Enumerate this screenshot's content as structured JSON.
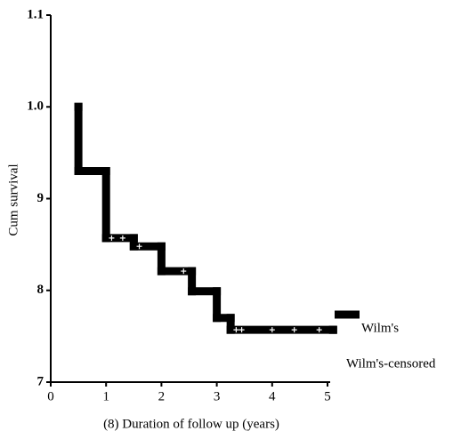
{
  "chart_data": {
    "type": "step",
    "xlabel": "(8) Duration of follow up (years)",
    "ylabel": "Cum survival",
    "xlim": [
      0,
      5
    ],
    "xticks": [
      0,
      1,
      2,
      3,
      4,
      5
    ],
    "ylim": [
      0.7,
      1.1
    ],
    "yticks": [
      {
        "value": 0.7,
        "label": "7"
      },
      {
        "value": 0.8,
        "label": "8"
      },
      {
        "value": 0.9,
        "label": "9"
      },
      {
        "value": 1,
        "label": "1.0"
      },
      1.1
    ],
    "series": [
      {
        "name": "Wilm's",
        "color": "#000000",
        "x": [
          0.5,
          0.5,
          1.0,
          1.5,
          2.0,
          2.55,
          3.0,
          3.25,
          5.1
        ],
        "values": [
          1.0,
          0.93,
          0.857,
          0.848,
          0.821,
          0.799,
          0.77,
          0.757,
          0.757
        ]
      },
      {
        "name": "Wilm's-censored",
        "color": "#ffffff",
        "x": [
          1.1,
          1.3,
          1.6,
          2.4,
          3.35,
          3.45,
          4.0,
          4.4,
          4.85
        ],
        "values": [
          0.857,
          0.857,
          0.848,
          0.821,
          0.757,
          0.757,
          0.757,
          0.757,
          0.757
        ]
      }
    ]
  }
}
